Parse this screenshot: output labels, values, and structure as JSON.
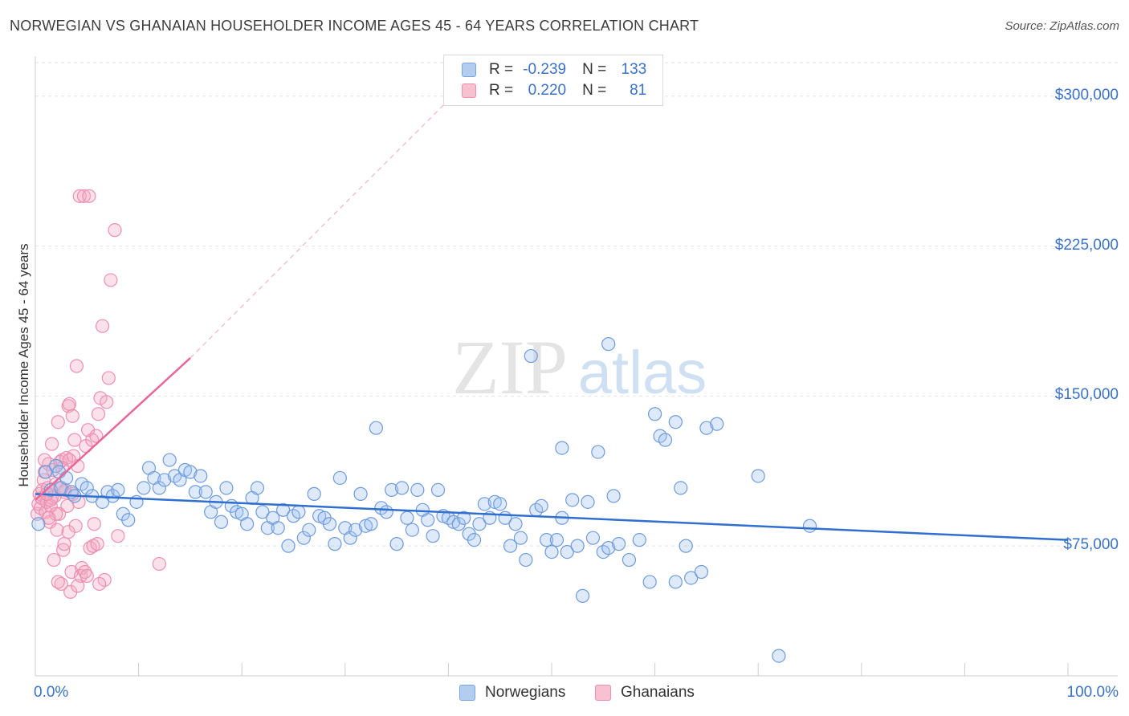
{
  "title": "NORWEGIAN VS GHANAIAN HOUSEHOLDER INCOME AGES 45 - 64 YEARS CORRELATION CHART",
  "source": "Source: ZipAtlas.com",
  "watermark": {
    "zip": "ZIP",
    "atlas": "atlas"
  },
  "legend": {
    "r_label": "R =",
    "n_label": "N =",
    "rows": [
      {
        "r": "-0.239",
        "n": "133",
        "fill": "#b3cdf1",
        "stroke": "#7aa4e0"
      },
      {
        "r": "0.220",
        "n": "81",
        "fill": "#f7c1d2",
        "stroke": "#ec8fb0"
      }
    ]
  },
  "chart_data": {
    "type": "scatter",
    "ylabel": "Householder Income Ages 45 - 64 years",
    "xlim": [
      0,
      100
    ],
    "ylim": [
      10000,
      320000
    ],
    "x_tick_labels": [
      "0.0%",
      "100.0%"
    ],
    "y_ticks": [
      {
        "value": 75000,
        "label": "$75,000"
      },
      {
        "value": 150000,
        "label": "$150,000"
      },
      {
        "value": 225000,
        "label": "$225,000"
      },
      {
        "value": 300000,
        "label": "$300,000"
      }
    ],
    "gridlines": "horizontal dashed",
    "colors": {
      "norwegians": "#5b8fd8",
      "ghanaians": "#ee88aa",
      "blue_line": "#2f6fd0",
      "pink_line": "#e8679a"
    },
    "series": [
      {
        "name": "Norwegians",
        "trend": {
          "x": [
            0,
            100
          ],
          "y": [
            101000,
            78000
          ]
        },
        "points": [
          [
            0.3,
            86000
          ],
          [
            1,
            112000
          ],
          [
            1.5,
            103000
          ],
          [
            2,
            115000
          ],
          [
            2.3,
            112000
          ],
          [
            2.5,
            104000
          ],
          [
            3,
            109000
          ],
          [
            3.5,
            102000
          ],
          [
            3.8,
            100000
          ],
          [
            4.5,
            106000
          ],
          [
            5,
            104000
          ],
          [
            5.5,
            100000
          ],
          [
            6.5,
            97000
          ],
          [
            7,
            102000
          ],
          [
            7.5,
            100000
          ],
          [
            8,
            103000
          ],
          [
            8.5,
            91000
          ],
          [
            9,
            88000
          ],
          [
            9.8,
            97000
          ],
          [
            10.5,
            104000
          ],
          [
            11,
            114000
          ],
          [
            11.5,
            109000
          ],
          [
            12,
            104000
          ],
          [
            12.5,
            108000
          ],
          [
            13,
            118000
          ],
          [
            13.5,
            110000
          ],
          [
            14,
            108000
          ],
          [
            14.5,
            113000
          ],
          [
            15,
            112000
          ],
          [
            15.5,
            102000
          ],
          [
            16,
            110000
          ],
          [
            16.5,
            102000
          ],
          [
            17,
            92000
          ],
          [
            17.5,
            97000
          ],
          [
            18,
            87000
          ],
          [
            18.5,
            104000
          ],
          [
            19,
            95000
          ],
          [
            19.5,
            92000
          ],
          [
            20,
            91000
          ],
          [
            20.5,
            86000
          ],
          [
            21,
            99000
          ],
          [
            21.5,
            104000
          ],
          [
            22,
            92000
          ],
          [
            22.5,
            84000
          ],
          [
            23,
            89000
          ],
          [
            23.5,
            84000
          ],
          [
            24,
            93000
          ],
          [
            24.5,
            75000
          ],
          [
            25,
            90000
          ],
          [
            25.5,
            92000
          ],
          [
            26,
            79000
          ],
          [
            26.5,
            83000
          ],
          [
            27,
            101000
          ],
          [
            27.5,
            90000
          ],
          [
            28,
            89000
          ],
          [
            28.5,
            86000
          ],
          [
            29,
            76000
          ],
          [
            29.5,
            109000
          ],
          [
            30,
            84000
          ],
          [
            30.5,
            79000
          ],
          [
            31,
            83000
          ],
          [
            31.5,
            101000
          ],
          [
            32,
            85000
          ],
          [
            32.5,
            86000
          ],
          [
            33,
            134000
          ],
          [
            33.5,
            94000
          ],
          [
            34,
            92000
          ],
          [
            34.5,
            103000
          ],
          [
            35,
            76000
          ],
          [
            35.5,
            104000
          ],
          [
            36,
            89000
          ],
          [
            36.5,
            83000
          ],
          [
            37,
            103000
          ],
          [
            37.5,
            93000
          ],
          [
            38,
            88000
          ],
          [
            38.5,
            80000
          ],
          [
            39,
            103000
          ],
          [
            39.5,
            90000
          ],
          [
            40,
            89000
          ],
          [
            40.5,
            87000
          ],
          [
            41,
            86000
          ],
          [
            41.5,
            89000
          ],
          [
            42,
            81000
          ],
          [
            42.5,
            78000
          ],
          [
            43,
            86000
          ],
          [
            43.5,
            96000
          ],
          [
            44,
            89000
          ],
          [
            44.5,
            97000
          ],
          [
            45,
            96000
          ],
          [
            45.5,
            89000
          ],
          [
            46,
            75000
          ],
          [
            46.5,
            86000
          ],
          [
            47,
            79000
          ],
          [
            47.5,
            68000
          ],
          [
            48,
            170000
          ],
          [
            48.5,
            93000
          ],
          [
            49,
            95000
          ],
          [
            49.5,
            78000
          ],
          [
            50,
            72000
          ],
          [
            50.5,
            78000
          ],
          [
            51,
            89000
          ],
          [
            51.5,
            72000
          ],
          [
            52,
            98000
          ],
          [
            52.5,
            75000
          ],
          [
            53,
            50000
          ],
          [
            53.5,
            97000
          ],
          [
            54,
            79000
          ],
          [
            54.5,
            122000
          ],
          [
            55,
            72000
          ],
          [
            55.5,
            74000
          ],
          [
            56,
            100000
          ],
          [
            56.5,
            76000
          ],
          [
            57.5,
            68000
          ],
          [
            58.5,
            78000
          ],
          [
            59.5,
            57000
          ],
          [
            60.5,
            130000
          ],
          [
            61,
            128000
          ],
          [
            62,
            57000
          ],
          [
            62.5,
            104000
          ],
          [
            63,
            75000
          ],
          [
            63.5,
            59000
          ],
          [
            64.5,
            62000
          ],
          [
            65,
            134000
          ],
          [
            66,
            136000
          ],
          [
            70,
            110000
          ],
          [
            72,
            20000
          ],
          [
            75,
            85000
          ],
          [
            55.5,
            176000
          ],
          [
            51,
            124000
          ],
          [
            62,
            137000
          ],
          [
            60,
            141000
          ]
        ]
      },
      {
        "name": "Ghanaians",
        "trend_solid": {
          "x": [
            0,
            15
          ],
          "y": [
            98000,
            169000
          ]
        },
        "trend_dashed": {
          "x": [
            15,
            40
          ],
          "y": [
            169000,
            298000
          ]
        },
        "points": [
          [
            0.2,
            91000
          ],
          [
            0.3,
            96000
          ],
          [
            0.4,
            101000
          ],
          [
            0.5,
            94000
          ],
          [
            0.6,
            99000
          ],
          [
            0.7,
            103000
          ],
          [
            0.8,
            108000
          ],
          [
            0.9,
            112000
          ],
          [
            1,
            92000
          ],
          [
            1.1,
            97000
          ],
          [
            1.2,
            104000
          ],
          [
            1.3,
            116000
          ],
          [
            1.4,
            87000
          ],
          [
            1.5,
            95000
          ],
          [
            1.6,
            99000
          ],
          [
            1.7,
            113000
          ],
          [
            1.8,
            68000
          ],
          [
            1.9,
            100000
          ],
          [
            2,
            106000
          ],
          [
            2.1,
            83000
          ],
          [
            2.2,
            137000
          ],
          [
            2.3,
            91000
          ],
          [
            2.4,
            117000
          ],
          [
            2.5,
            56000
          ],
          [
            2.6,
            118000
          ],
          [
            2.7,
            73000
          ],
          [
            2.8,
            76000
          ],
          [
            2.9,
            103000
          ],
          [
            3,
            119000
          ],
          [
            3.1,
            95000
          ],
          [
            3.2,
            145000
          ],
          [
            3.3,
            146000
          ],
          [
            3.4,
            52000
          ],
          [
            3.5,
            62000
          ],
          [
            3.6,
            140000
          ],
          [
            3.7,
            120000
          ],
          [
            3.8,
            128000
          ],
          [
            3.9,
            85000
          ],
          [
            4,
            165000
          ],
          [
            4.1,
            115000
          ],
          [
            4.2,
            97000
          ],
          [
            4.3,
            250000
          ],
          [
            4.5,
            64000
          ],
          [
            4.7,
            250000
          ],
          [
            4.9,
            125000
          ],
          [
            5.1,
            133000
          ],
          [
            5.3,
            74000
          ],
          [
            5.5,
            128000
          ],
          [
            5.7,
            86000
          ],
          [
            5.9,
            130000
          ],
          [
            6.1,
            141000
          ],
          [
            6.3,
            149000
          ],
          [
            6.5,
            185000
          ],
          [
            6.7,
            58000
          ],
          [
            6.9,
            147000
          ],
          [
            7.1,
            159000
          ],
          [
            7.3,
            208000
          ],
          [
            7.7,
            233000
          ],
          [
            8,
            80000
          ],
          [
            5.2,
            250000
          ],
          [
            3.2,
            82000
          ],
          [
            2,
            91000
          ],
          [
            1.5,
            98000
          ],
          [
            1.1,
            101000
          ],
          [
            2.8,
            102000
          ],
          [
            3.6,
            101000
          ],
          [
            4.4,
            60000
          ],
          [
            4.8,
            62000
          ],
          [
            5.6,
            75000
          ],
          [
            6,
            76000
          ],
          [
            6.2,
            56000
          ],
          [
            1.6,
            126000
          ],
          [
            2.4,
            104000
          ],
          [
            1.3,
            89000
          ],
          [
            0.9,
            118000
          ],
          [
            2.2,
            57000
          ],
          [
            3.3,
            118000
          ],
          [
            4.1,
            55000
          ],
          [
            5,
            60000
          ],
          [
            12,
            66000
          ],
          [
            2.6,
            114000
          ]
        ]
      }
    ]
  },
  "bottom_legend": [
    "Norwegians",
    "Ghanaians"
  ]
}
